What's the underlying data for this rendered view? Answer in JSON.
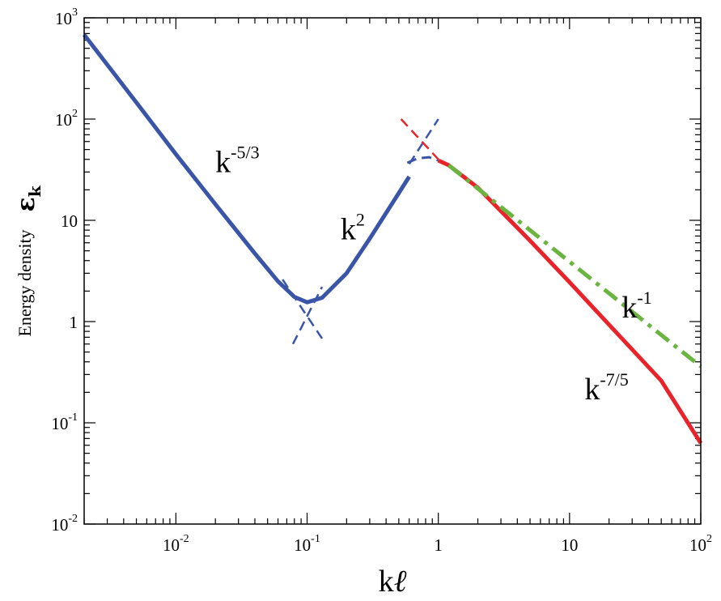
{
  "chart_data": {
    "type": "line",
    "x_scale": "log",
    "y_scale": "log",
    "xlim": [
      0.002,
      100
    ],
    "ylim": [
      0.01,
      1000
    ],
    "xlabel": {
      "main": "k",
      "script": "ℓ"
    },
    "ylabel": {
      "text": "Energy density",
      "symbol": "ε",
      "subscript": "k"
    },
    "x_ticks": [
      {
        "value": 0.01,
        "base": "10",
        "exp": "-2"
      },
      {
        "value": 0.1,
        "base": "10",
        "exp": "-1"
      },
      {
        "value": 1,
        "base": "1",
        "exp": ""
      },
      {
        "value": 10,
        "base": "10",
        "exp": ""
      },
      {
        "value": 100,
        "base": "10",
        "exp": "2"
      }
    ],
    "y_ticks": [
      {
        "value": 0.01,
        "base": "10",
        "exp": "-2"
      },
      {
        "value": 0.1,
        "base": "10",
        "exp": "-1"
      },
      {
        "value": 1,
        "base": "1",
        "exp": ""
      },
      {
        "value": 10,
        "base": "10",
        "exp": ""
      },
      {
        "value": 100,
        "base": "10",
        "exp": "2"
      },
      {
        "value": 1000,
        "base": "10",
        "exp": "3"
      }
    ],
    "grid": false,
    "series": [
      {
        "color": "#3a55a8",
        "style": "solid",
        "width": 5,
        "points": [
          [
            0.002,
            680
          ],
          [
            0.005,
            146
          ],
          [
            0.01,
            45
          ],
          [
            0.02,
            14.4
          ],
          [
            0.04,
            4.7
          ],
          [
            0.06,
            2.5
          ],
          [
            0.08,
            1.75
          ],
          [
            0.1,
            1.55
          ],
          [
            0.13,
            1.72
          ],
          [
            0.2,
            3.0
          ],
          [
            0.3,
            6.6
          ],
          [
            0.45,
            15
          ],
          [
            0.6,
            27
          ]
        ]
      },
      {
        "color": "#3a55a8",
        "style": "dashed",
        "width": 3,
        "points": [
          [
            0.58,
            37
          ],
          [
            0.7,
            41
          ],
          [
            0.85,
            42
          ],
          [
            1.0,
            39
          ]
        ]
      },
      {
        "color": "#e8242a",
        "style": "solid",
        "width": 5,
        "points": [
          [
            1.0,
            39
          ],
          [
            1.2,
            35
          ],
          [
            2,
            21
          ],
          [
            5,
            6.3
          ],
          [
            10,
            2.45
          ],
          [
            20,
            0.93
          ],
          [
            50,
            0.26
          ],
          [
            100,
            0.063
          ]
        ]
      },
      {
        "color": "#6ab540",
        "style": "dashdot",
        "width": 5,
        "points": [
          [
            1.2,
            35
          ],
          [
            100,
            0.36
          ]
        ]
      },
      {
        "color": "#3a55a8",
        "style": "dashed",
        "width": 2.5,
        "points": [
          [
            0.065,
            2.6
          ],
          [
            0.13,
            0.68
          ]
        ]
      },
      {
        "color": "#3a55a8",
        "style": "dashed",
        "width": 2.5,
        "points": [
          [
            0.078,
            0.6
          ],
          [
            0.13,
            2.2
          ]
        ]
      },
      {
        "color": "#3a55a8",
        "style": "dashed",
        "width": 2.5,
        "points": [
          [
            0.6,
            36
          ],
          [
            1.0,
            100
          ]
        ]
      },
      {
        "color": "#e8242a",
        "style": "dashed",
        "width": 2.5,
        "points": [
          [
            0.52,
            100
          ],
          [
            1.0,
            40
          ]
        ]
      }
    ],
    "annotations": [
      {
        "base": "k",
        "exp": "-5/3",
        "x": 0.02,
        "y": 30
      },
      {
        "base": "k",
        "exp": "2",
        "x": 0.18,
        "y": 6.5
      },
      {
        "base": "k",
        "exp": "-1",
        "x": 25,
        "y": 1.1
      },
      {
        "base": "k",
        "exp": "-7/5",
        "x": 13,
        "y": 0.17
      }
    ]
  }
}
